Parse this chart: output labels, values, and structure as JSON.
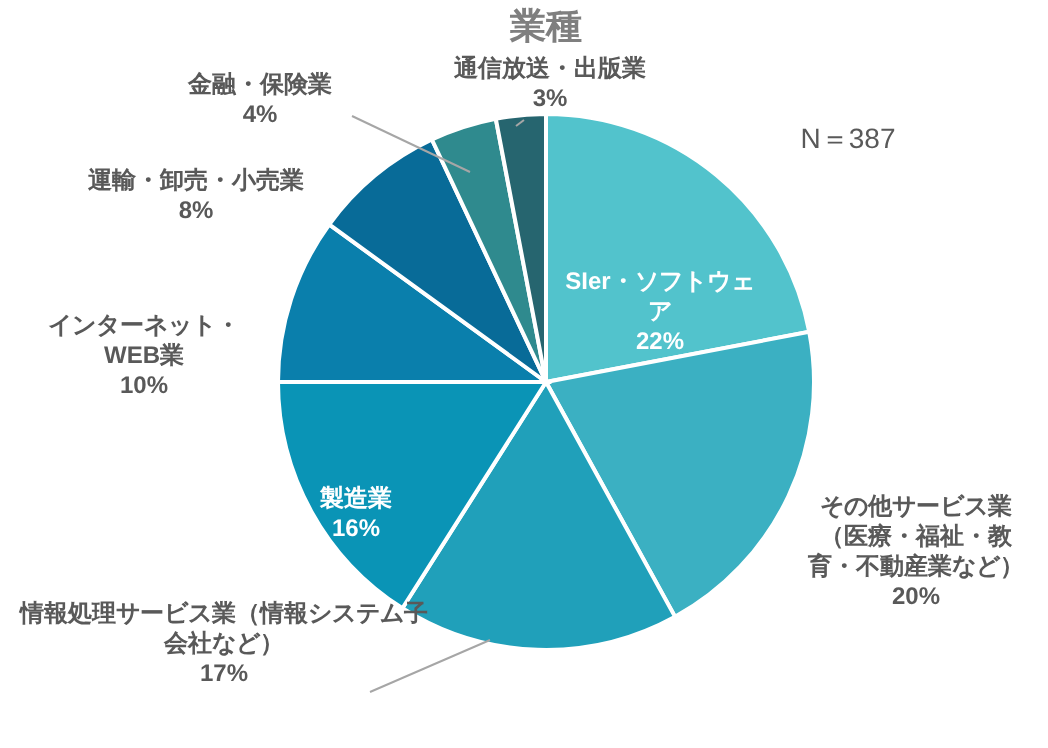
{
  "chart_data": {
    "type": "pie",
    "title": "業種",
    "categories": [
      "SIer・ソフトウェア",
      "その他サービス業（医療・福祉・教育・不動産業など）",
      "情報処理サービス業（情報システム子会社など）",
      "製造業",
      "インターネット・WEB業",
      "運輸・卸売・小売業",
      "金融・保険業",
      "通信放送・出版業"
    ],
    "values": [
      22,
      20,
      17,
      16,
      10,
      8,
      4,
      3
    ],
    "colors": [
      "#52c3cc",
      "#3bb0c2",
      "#20a0ba",
      "#0a94b6",
      "#0a7fac",
      "#086b98",
      "#2f8a8e",
      "#26656f"
    ],
    "value_labels": [
      "22%",
      "20%",
      "17%",
      "16%",
      "10%",
      "8%",
      "4%",
      "3%"
    ],
    "annotations": [
      "N＝387"
    ]
  }
}
